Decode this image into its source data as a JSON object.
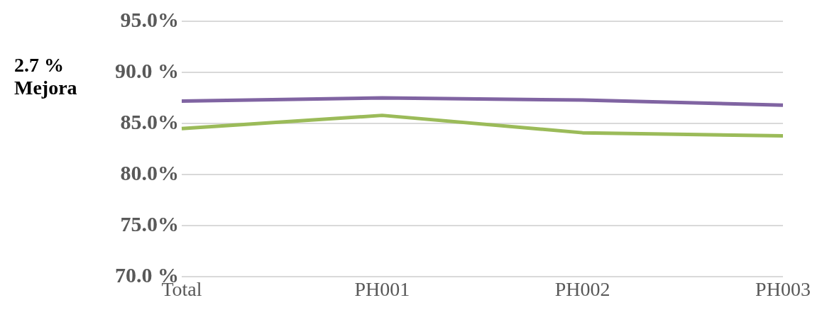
{
  "chart_data": {
    "type": "line",
    "categories": [
      "Total",
      "PH001",
      "PH002",
      "PH003"
    ],
    "series": [
      {
        "color": "#8064a2",
        "values": [
          87.2,
          87.5,
          87.3,
          86.8
        ]
      },
      {
        "color": "#9bbb59",
        "values": [
          84.5,
          85.8,
          84.1,
          83.8
        ]
      }
    ],
    "ylim": [
      70,
      95
    ],
    "yticks": [
      {
        "value": 70,
        "label": "70.0 %"
      },
      {
        "value": 75,
        "label": "75.0%"
      },
      {
        "value": 80,
        "label": "80.0%"
      },
      {
        "value": 85,
        "label": "85.0%"
      },
      {
        "value": 90,
        "label": "90.0 %"
      },
      {
        "value": 95,
        "label": "95.0%"
      }
    ],
    "grid": "y",
    "legend": false,
    "marker": "none",
    "line_style": "solid",
    "annotations": [
      "2.7 %\nMejora"
    ]
  }
}
